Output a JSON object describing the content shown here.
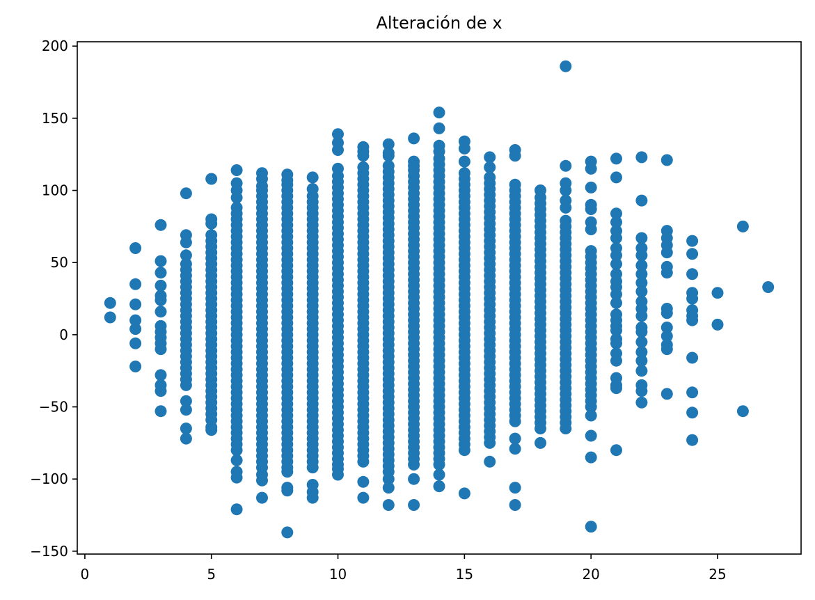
{
  "chart_data": {
    "type": "scatter",
    "title": "Alteración de x",
    "xlabel": "",
    "ylabel": "",
    "xlim": [
      -0.3,
      28.3
    ],
    "ylim": [
      -152,
      203
    ],
    "xticks": [
      0,
      5,
      10,
      15,
      20,
      25
    ],
    "yticks": [
      -150,
      -100,
      -50,
      0,
      50,
      100,
      150,
      200
    ],
    "xtick_labels": [
      "0",
      "5",
      "10",
      "15",
      "20",
      "25"
    ],
    "ytick_labels": [
      "−150",
      "−100",
      "−50",
      "0",
      "50",
      "100",
      "150",
      "200"
    ],
    "grid": false,
    "marker_color": "#1f77b4",
    "columns": [
      {
        "x": 1,
        "dense_range": null,
        "points": [
          22,
          12
        ]
      },
      {
        "x": 2,
        "dense_range": null,
        "points": [
          60,
          35,
          21,
          10,
          4,
          -6,
          -22
        ]
      },
      {
        "x": 3,
        "dense_range": [
          -10,
          8
        ],
        "points": [
          76,
          51,
          43,
          34,
          27,
          24,
          16,
          -28,
          -35,
          -39,
          -53
        ]
      },
      {
        "x": 4,
        "dense_range": [
          -35,
          50
        ],
        "points": [
          98,
          69,
          64,
          55,
          -46,
          -52,
          -65,
          -72
        ]
      },
      {
        "x": 5,
        "dense_range": [
          -55,
          70
        ],
        "points": [
          108,
          80,
          77,
          -59,
          -64,
          -66
        ]
      },
      {
        "x": 6,
        "dense_range": [
          -80,
          90
        ],
        "points": [
          114,
          105,
          100,
          95,
          -87,
          -95,
          -99,
          -121
        ]
      },
      {
        "x": 7,
        "dense_range": [
          -92,
          100
        ],
        "points": [
          112,
          108,
          103,
          -97,
          -101,
          -113
        ]
      },
      {
        "x": 8,
        "dense_range": [
          -92,
          100
        ],
        "points": [
          111,
          107,
          104,
          -95,
          -106,
          -108,
          -137
        ]
      },
      {
        "x": 9,
        "dense_range": [
          -92,
          98
        ],
        "points": [
          109,
          101,
          -104,
          -109,
          -113
        ]
      },
      {
        "x": 10,
        "dense_range": [
          -90,
          110
        ],
        "points": [
          139,
          133,
          128,
          115,
          -93,
          -97
        ]
      },
      {
        "x": 11,
        "dense_range": [
          -88,
          118
        ],
        "points": [
          130,
          127,
          124,
          -102,
          -113
        ]
      },
      {
        "x": 12,
        "dense_range": [
          -95,
          120
        ],
        "points": [
          132,
          126,
          124,
          -100,
          -106,
          -118
        ]
      },
      {
        "x": 13,
        "dense_range": [
          -90,
          110
        ],
        "points": [
          136,
          120,
          117,
          114,
          -100,
          -118
        ]
      },
      {
        "x": 14,
        "dense_range": [
          -90,
          125
        ],
        "points": [
          154,
          143,
          131,
          127,
          -97,
          -105
        ]
      },
      {
        "x": 15,
        "dense_range": [
          -80,
          115
        ],
        "points": [
          134,
          129,
          120,
          -110
        ]
      },
      {
        "x": 16,
        "dense_range": [
          -75,
          110
        ],
        "points": [
          123,
          116,
          -88
        ]
      },
      {
        "x": 17,
        "dense_range": [
          -60,
          105
        ],
        "points": [
          128,
          124,
          -72,
          -79,
          -106,
          -118
        ]
      },
      {
        "x": 18,
        "dense_range": [
          -65,
          98
        ],
        "points": [
          100,
          -75
        ]
      },
      {
        "x": 19,
        "dense_range": [
          -65,
          80
        ],
        "points": [
          186,
          117,
          105,
          100,
          93,
          88
        ]
      },
      {
        "x": 20,
        "dense_range": [
          -50,
          60
        ],
        "points": [
          120,
          115,
          102,
          90,
          87,
          78,
          73,
          -56,
          -70,
          -85,
          -133
        ]
      },
      {
        "x": 21,
        "dense_range": null,
        "points": [
          122,
          109,
          84,
          78,
          72,
          67,
          60,
          55,
          49,
          42,
          37,
          33,
          28,
          22,
          14,
          10,
          6,
          3,
          -3,
          -6,
          -13,
          -18,
          -30,
          -35,
          -37,
          -80
        ]
      },
      {
        "x": 22,
        "dense_range": null,
        "points": [
          123,
          93,
          67,
          60,
          55,
          48,
          42,
          36,
          30,
          23,
          18,
          13,
          5,
          2,
          -5,
          -12,
          -18,
          -25,
          -35,
          -39,
          -47
        ]
      },
      {
        "x": 23,
        "dense_range": null,
        "points": [
          121,
          72,
          67,
          62,
          57,
          47,
          43,
          18,
          15,
          5,
          -1,
          -7,
          -10,
          -41
        ]
      },
      {
        "x": 24,
        "dense_range": null,
        "points": [
          65,
          56,
          42,
          29,
          25,
          17,
          13,
          10,
          -16,
          -40,
          -54,
          -73
        ]
      },
      {
        "x": 25,
        "dense_range": null,
        "points": [
          29,
          7
        ]
      },
      {
        "x": 26,
        "dense_range": null,
        "points": [
          75,
          -53
        ]
      },
      {
        "x": 27,
        "dense_range": null,
        "points": [
          33
        ]
      }
    ]
  }
}
